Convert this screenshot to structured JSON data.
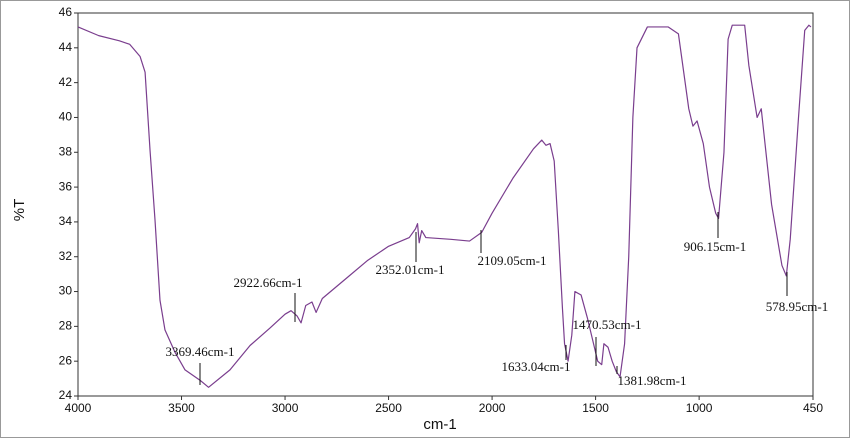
{
  "chart_data": {
    "type": "line",
    "xlabel": "cm-1",
    "ylabel": "%T",
    "xlim": [
      4000,
      450
    ],
    "ylim": [
      24,
      46
    ],
    "xticks": [
      4000,
      3500,
      3000,
      2500,
      2000,
      1500,
      1000,
      450
    ],
    "yticks": [
      24,
      26,
      28,
      30,
      32,
      34,
      36,
      38,
      40,
      42,
      44,
      46
    ],
    "x": [
      4000,
      3900,
      3800,
      3750,
      3700,
      3676,
      3652,
      3628,
      3604,
      3580,
      3531,
      3483,
      3410,
      3369.46,
      3266,
      3169,
      3073,
      3000,
      2971,
      2942,
      2922.66,
      2900,
      2870,
      2850,
      2820,
      2700,
      2600,
      2500,
      2400,
      2370,
      2360,
      2352.01,
      2340,
      2320,
      2200,
      2109.05,
      2050,
      2000,
      1900,
      1800,
      1760,
      1740,
      1720,
      1700,
      1680,
      1660,
      1650,
      1633.04,
      1615,
      1600,
      1570,
      1540,
      1510,
      1490,
      1470.53,
      1460,
      1440,
      1420,
      1400,
      1381.98,
      1360,
      1340,
      1320,
      1300,
      1250,
      1150,
      1100,
      1050,
      1030,
      1010,
      980,
      950,
      920,
      906.15,
      880,
      860,
      840,
      780,
      760,
      720,
      700,
      650,
      600,
      578.95,
      560,
      520,
      490,
      470,
      460
    ],
    "series": [
      {
        "name": "%T",
        "color": "#7a3e8e",
        "values": [
          45.2,
          44.7,
          44.4,
          44.2,
          43.5,
          42.6,
          38.1,
          34.1,
          29.5,
          27.8,
          26.5,
          25.5,
          24.9,
          24.5,
          25.5,
          26.9,
          27.9,
          28.7,
          28.9,
          28.6,
          28.2,
          29.2,
          29.4,
          28.8,
          29.6,
          30.8,
          31.8,
          32.6,
          33.1,
          33.6,
          33.9,
          32.8,
          33.5,
          33.1,
          33.0,
          32.9,
          33.4,
          34.5,
          36.5,
          38.2,
          38.7,
          38.4,
          38.5,
          37.5,
          33.5,
          29.0,
          27.0,
          26.0,
          27.5,
          30.0,
          29.8,
          28.5,
          27.0,
          26.0,
          25.8,
          27.0,
          26.8,
          26.0,
          25.4,
          25.1,
          27.0,
          32.0,
          40.0,
          44.0,
          45.2,
          45.2,
          44.8,
          40.5,
          39.5,
          39.8,
          38.5,
          36.0,
          34.5,
          34.2,
          38.0,
          44.5,
          45.3,
          45.3,
          43.0,
          40.0,
          40.5,
          35.0,
          31.5,
          30.9,
          33.0,
          40.0,
          45.0,
          45.3,
          45.2
        ]
      }
    ],
    "annotations": [
      {
        "text": "3369.46cm-1"
      },
      {
        "text": "2922.66cm-1"
      },
      {
        "text": "2352.01cm-1"
      },
      {
        "text": "2109.05cm-1"
      },
      {
        "text": "1633.04cm-1"
      },
      {
        "text": "1470.53cm-1"
      },
      {
        "text": "1381.98cm-1"
      },
      {
        "text": "906.15cm-1"
      },
      {
        "text": "578.95cm-1"
      }
    ],
    "grid": false
  }
}
